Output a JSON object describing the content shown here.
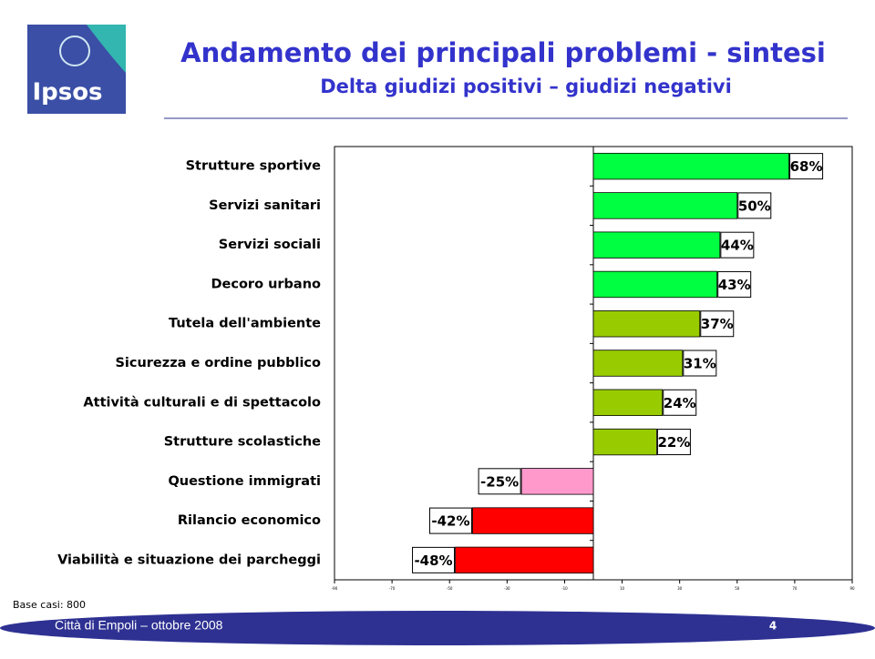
{
  "logo": "Ipsos",
  "header": {
    "title": "Andamento dei principali problemi - sintesi",
    "subtitle": "Delta giudizi positivi – giudizi negativi"
  },
  "chart_data": {
    "type": "hbar",
    "categories": [
      "Strutture sportive",
      "Servizi sanitari",
      "Servizi sociali",
      "Decoro urbano",
      "Tutela dell'ambiente",
      "Sicurezza e ordine pubblico",
      "Attività culturali e di spettacolo",
      "Strutture scolastiche",
      "Questione immigrati",
      "Rilancio economico",
      "Viabilità e situazione dei parcheggi"
    ],
    "values": [
      68,
      50,
      44,
      43,
      37,
      31,
      24,
      22,
      -25,
      -42,
      -48
    ],
    "value_labels": [
      "68%",
      "50%",
      "44%",
      "43%",
      "37%",
      "31%",
      "24%",
      "22%",
      "-25%",
      "-42%",
      "-48%"
    ],
    "colors": [
      "#00ff40",
      "#00ff40",
      "#00ff40",
      "#00ff40",
      "#99cc00",
      "#99cc00",
      "#99cc00",
      "#99cc00",
      "#ff99cc",
      "#ff0000",
      "#ff0000"
    ],
    "xlim": [
      -90,
      90
    ],
    "xticks": [
      -90,
      -70,
      -50,
      -30,
      -10,
      10,
      30,
      50,
      70,
      90
    ]
  },
  "note": "Base casi: 800",
  "footer": {
    "text": "Città di Empoli – ottobre 2008",
    "page": "4"
  }
}
